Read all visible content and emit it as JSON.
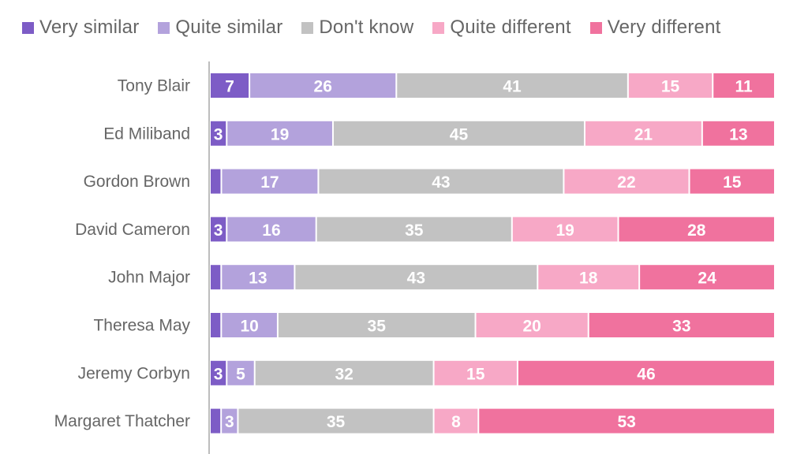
{
  "colors": {
    "very_similar": "#7d5cc6",
    "quite_similar": "#b3a2dc",
    "dont_know": "#c2c2c2",
    "quite_different": "#f7a8c6",
    "very_different": "#f0729e",
    "axis": "#bdbdbd"
  },
  "legend": [
    {
      "label": "Very similar",
      "color": "#7d5cc6"
    },
    {
      "label": "Quite similar",
      "color": "#b3a2dc"
    },
    {
      "label": "Don't know",
      "color": "#c2c2c2"
    },
    {
      "label": "Quite different",
      "color": "#f7a8c6"
    },
    {
      "label": "Very different",
      "color": "#f0729e"
    }
  ],
  "chart_data": {
    "type": "bar",
    "orientation": "horizontal",
    "stacked": true,
    "legend_position": "top",
    "grid": false,
    "categories": [
      "Tony Blair",
      "Ed Miliband",
      "Gordon Brown",
      "David Cameron",
      "John Major",
      "Theresa May",
      "Jeremy Corbyn",
      "Margaret Thatcher"
    ],
    "series": [
      {
        "name": "Very similar",
        "values": [
          7,
          3,
          2,
          3,
          2,
          2,
          3,
          2
        ],
        "labels": [
          "7",
          "3",
          "",
          "3",
          "",
          "",
          "3",
          ""
        ]
      },
      {
        "name": "Quite similar",
        "values": [
          26,
          19,
          17,
          16,
          13,
          10,
          5,
          3
        ],
        "labels": [
          "26",
          "19",
          "17",
          "16",
          "13",
          "10",
          "5",
          "3"
        ]
      },
      {
        "name": "Don't know",
        "values": [
          41,
          45,
          43,
          35,
          43,
          35,
          32,
          35
        ],
        "labels": [
          "41",
          "45",
          "43",
          "35",
          "43",
          "35",
          "32",
          "35"
        ]
      },
      {
        "name": "Quite different",
        "values": [
          15,
          21,
          22,
          19,
          18,
          20,
          15,
          8
        ],
        "labels": [
          "15",
          "21",
          "22",
          "19",
          "18",
          "20",
          "15",
          "8"
        ]
      },
      {
        "name": "Very different",
        "values": [
          11,
          13,
          15,
          28,
          24,
          33,
          46,
          53
        ],
        "labels": [
          "11",
          "13",
          "15",
          "28",
          "24",
          "33",
          "46",
          "53"
        ]
      }
    ]
  }
}
